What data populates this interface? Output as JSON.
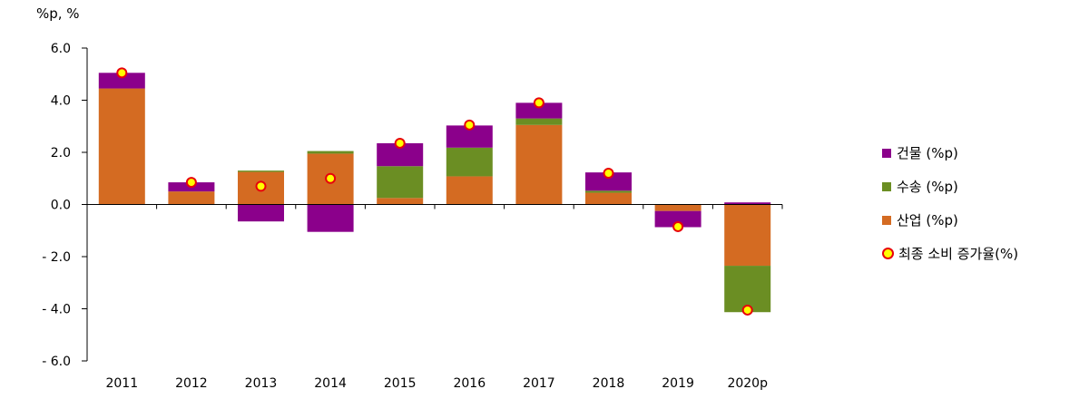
{
  "chart_data": {
    "type": "bar",
    "stacked": true,
    "unit_label": "%p, %",
    "categories": [
      "2011",
      "2012",
      "2013",
      "2014",
      "2015",
      "2016",
      "2017",
      "2018",
      "2019",
      "2020p"
    ],
    "series": [
      {
        "name": "산업 (%p)",
        "color": "#d46b22",
        "values": [
          4.45,
          0.5,
          1.25,
          1.95,
          0.25,
          1.08,
          3.05,
          0.45,
          -0.25,
          -2.35
        ]
      },
      {
        "name": "수송 (%p)",
        "color": "#6b8e23",
        "values": [
          0.0,
          0.0,
          0.05,
          0.1,
          1.22,
          1.1,
          0.25,
          0.08,
          0.0,
          -1.78
        ]
      },
      {
        "name": "건물 (%p)",
        "color": "#8b008b",
        "values": [
          0.6,
          0.35,
          -0.65,
          -1.05,
          0.88,
          0.85,
          0.6,
          0.7,
          -0.62,
          0.08
        ]
      }
    ],
    "line_series": {
      "name": "최종 소비 증가율(%)",
      "values": [
        5.05,
        0.85,
        0.7,
        1.0,
        2.35,
        3.05,
        3.9,
        1.2,
        -0.85,
        -4.05
      ]
    },
    "yticks": [
      "6.0",
      "4.0",
      "2.0",
      "0.0",
      "- 2.0",
      "- 4.0",
      "- 6.0"
    ],
    "ylim": [
      -6,
      6
    ],
    "grid": false,
    "legend_position": "right"
  },
  "legend": [
    {
      "label": "건물 (%p)",
      "color": "#8b008b",
      "kind": "square"
    },
    {
      "label": "수송 (%p)",
      "color": "#6b8e23",
      "kind": "square"
    },
    {
      "label": "산업 (%p)",
      "color": "#d46b22",
      "kind": "square"
    },
    {
      "label": "최종 소비 증가율(%)",
      "color": "#ffff00",
      "kind": "dot"
    }
  ]
}
